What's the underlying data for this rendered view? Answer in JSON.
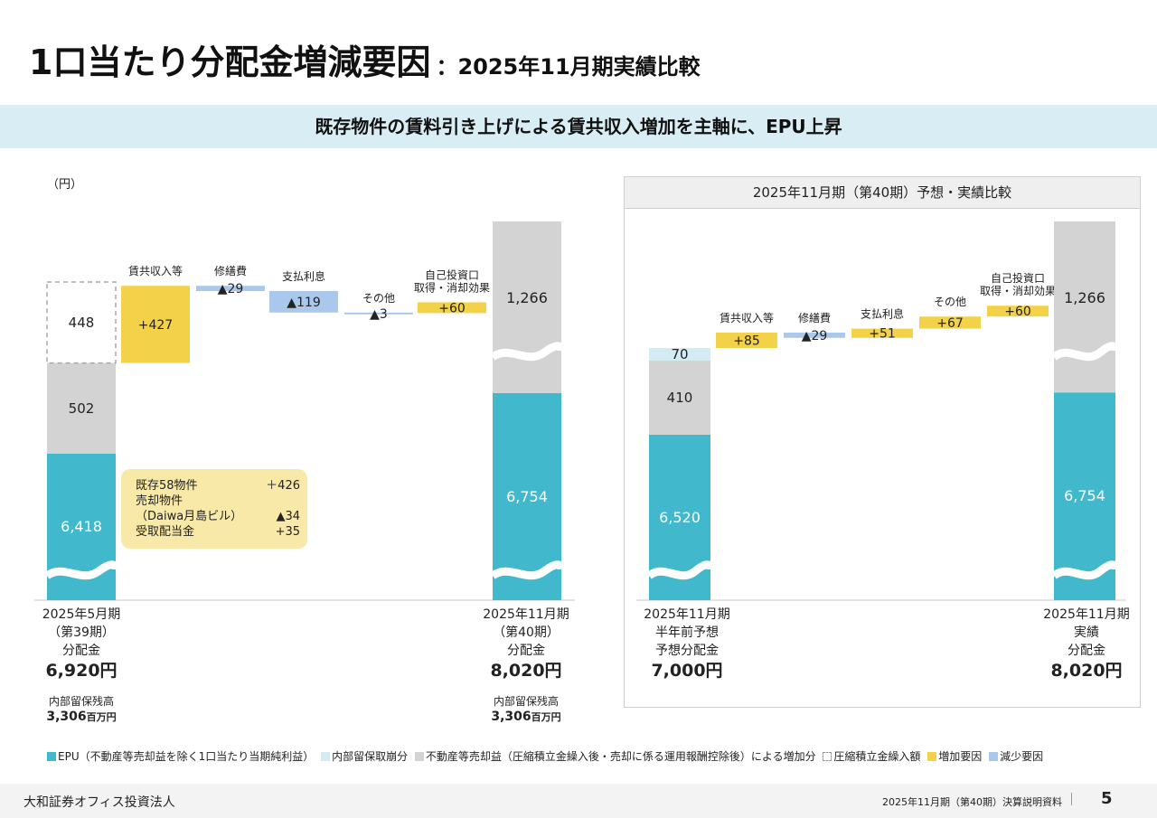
{
  "title": {
    "main": "1口当たり分配金増減要因",
    "sub": "：2025年11月期実績比較"
  },
  "banner": "既存物件の賃料引き上げによる賃共収入増加を主軸に、EPU上昇",
  "unit_label": "（円）",
  "colors": {
    "epu": "#41b8cb",
    "internal": "#d3ecf4",
    "gain": "#d3d3d3",
    "increase": "#f3d24a",
    "decrease": "#a9c8ec",
    "frame": "#a8a8a8"
  },
  "chart_data": [
    {
      "type": "waterfall",
      "start": {
        "epu": 6418,
        "gain": 502,
        "reserve": 448,
        "labels": [
          "6,418",
          "502",
          "448"
        ]
      },
      "steps": [
        {
          "name": "賃共収入等",
          "value": 427,
          "label": "+427",
          "kind": "increase"
        },
        {
          "name": "修繕費",
          "value": -29,
          "label": "▲29",
          "kind": "decrease"
        },
        {
          "name": "支払利息",
          "value": -119,
          "label": "▲119",
          "kind": "decrease"
        },
        {
          "name": "その他",
          "value": -3,
          "label": "▲3",
          "kind": "decrease"
        },
        {
          "name": "自己投資口\n取得・消却効果",
          "value": 60,
          "label": "+60",
          "kind": "increase"
        }
      ],
      "end": {
        "epu": 6754,
        "gain": 1266,
        "labels": [
          "6,754",
          "1,266"
        ]
      },
      "note": [
        {
          "label": "既存58物件",
          "value": "＋426"
        },
        {
          "label": "売却物件",
          "value": ""
        },
        {
          "label": "（Daiwa月島ビル）",
          "value": "▲34"
        },
        {
          "label": "受取配当金",
          "value": "+35"
        }
      ],
      "x_left": {
        "period": "2025年5月期",
        "term": "（第39期）",
        "caption": "分配金",
        "amount": "6,920円",
        "reserve_label": "内部留保残高",
        "reserve_value": "3,306",
        "reserve_unit": "百万円"
      },
      "x_right": {
        "period": "2025年11月期",
        "term": "（第40期）",
        "caption": "分配金",
        "amount": "8,020円",
        "reserve_label": "内部留保残高",
        "reserve_value": "3,306",
        "reserve_unit": "百万円"
      }
    },
    {
      "type": "waterfall",
      "title": "2025年11月期（第40期）予想・実績比較",
      "start": {
        "epu": 6520,
        "gain": 410,
        "internal": 70,
        "labels": [
          "6,520",
          "410",
          "70"
        ]
      },
      "steps": [
        {
          "name": "賃共収入等",
          "value": 85,
          "label": "+85",
          "kind": "increase"
        },
        {
          "name": "修繕費",
          "value": -29,
          "label": "▲29",
          "kind": "decrease"
        },
        {
          "name": "支払利息",
          "value": 51,
          "label": "+51",
          "kind": "increase"
        },
        {
          "name": "その他",
          "value": 67,
          "label": "+67",
          "kind": "increase"
        },
        {
          "name": "自己投資口\n取得・消却効果",
          "value": 60,
          "label": "+60",
          "kind": "increase"
        }
      ],
      "end": {
        "epu": 6754,
        "gain": 1266,
        "labels": [
          "6,754",
          "1,266"
        ]
      },
      "x_left": {
        "period": "2025年11月期",
        "term": "半年前予想",
        "caption": "予想分配金",
        "amount": "7,000円"
      },
      "x_right": {
        "period": "2025年11月期",
        "term": "実績",
        "caption": "分配金",
        "amount": "8,020円"
      }
    }
  ],
  "legend": [
    {
      "label": "EPU（不動産等売却益を除く1口当たり当期純利益）",
      "swatch": "epu"
    },
    {
      "label": "内部留保取崩分",
      "swatch": "internal"
    },
    {
      "label": "不動産等売却益（圧縮積立金繰入後・売却に係る運用報酬控除後）による増加分",
      "swatch": "gain"
    },
    {
      "label": "圧縮積立金繰入額",
      "swatch": "frame"
    },
    {
      "label": "増加要因",
      "swatch": "increase"
    },
    {
      "label": "減少要因",
      "swatch": "decrease"
    }
  ],
  "footer": {
    "company": "大和証券オフィス投資法人",
    "doc": "2025年11月期（第40期）決算説明資料",
    "page": "5"
  }
}
